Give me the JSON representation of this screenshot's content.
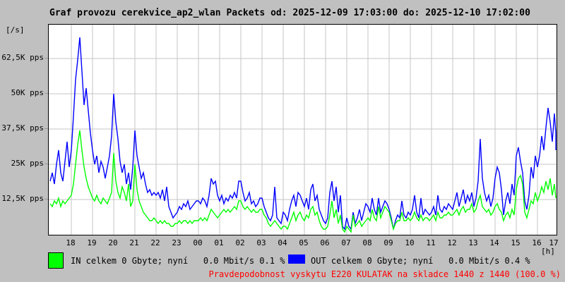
{
  "window": {
    "bg_color": "#c0c0c0"
  },
  "header": {
    "title": "Graf provozu cerekvice_ap2_wlan Packets od: 2025-12-09 17:03:00 do: 2025-12-10 17:02:00"
  },
  "axis": {
    "unit_label": "[/s]",
    "hour_unit": "[h]"
  },
  "legend": {
    "in_label": "IN celkem 0 Gbyte; nyní   0.0 Mbit/s 0.1 %",
    "out_label": "OUT celkem 0 Gbyte; nyní   0.0 Mbit/s 0.4 %",
    "in_color": "#00ff00",
    "out_color": "#0000ff"
  },
  "status": {
    "text": "Pravdepodobnost vyskytu E220 KULATAK na skladce 1440 z 1440 (100.0 %)",
    "color": "#ff0000"
  },
  "chart_data": {
    "type": "line",
    "title": "Graf provozu cerekvice_ap2_wlan Packets od: 2025-12-09 17:03:00 do: 2025-12-10 17:02:00",
    "xlabel": "[h]",
    "ylabel": "[/s]",
    "x_start": "2025-12-09 17:03:00",
    "x_end": "2025-12-10 17:02:00",
    "sample_interval_hours": 0.1,
    "values_unit": "Kpps",
    "ylim_kpps": [
      0,
      74.5
    ],
    "grid": true,
    "grid_color": "#c6c6c6",
    "y_ticks": [
      {
        "label": "12,5K pps",
        "kpps": 12.5
      },
      {
        "label": "25K pps",
        "kpps": 25
      },
      {
        "label": "37,5K pps",
        "kpps": 37.5
      },
      {
        "label": "50K pps",
        "kpps": 50
      },
      {
        "label": "62,5K pps",
        "kpps": 62.5
      }
    ],
    "x_ticks": [
      {
        "label": "18",
        "t": 1
      },
      {
        "label": "19",
        "t": 2
      },
      {
        "label": "20",
        "t": 3
      },
      {
        "label": "21",
        "t": 4
      },
      {
        "label": "22",
        "t": 5
      },
      {
        "label": "23",
        "t": 6
      },
      {
        "label": "00",
        "t": 7
      },
      {
        "label": "01",
        "t": 8
      },
      {
        "label": "02",
        "t": 9
      },
      {
        "label": "03",
        "t": 10
      },
      {
        "label": "04",
        "t": 11
      },
      {
        "label": "05",
        "t": 12
      },
      {
        "label": "06",
        "t": 13
      },
      {
        "label": "07",
        "t": 14
      },
      {
        "label": "08",
        "t": 15
      },
      {
        "label": "09",
        "t": 16
      },
      {
        "label": "10",
        "t": 17
      },
      {
        "label": "11",
        "t": 18
      },
      {
        "label": "12",
        "t": 19
      },
      {
        "label": "13",
        "t": 20
      },
      {
        "label": "14",
        "t": 21
      },
      {
        "label": "15",
        "t": 22
      },
      {
        "label": "16",
        "t": 23
      },
      {
        "label": "17",
        "t": 24
      }
    ],
    "legend_position": "bottom",
    "series": [
      {
        "name": "IN",
        "color": "#00ff00",
        "values": [
          11,
          10,
          12,
          11,
          13,
          10,
          12,
          11,
          12,
          13,
          14,
          18,
          25,
          32,
          37,
          30,
          24,
          20,
          17,
          15,
          13,
          12,
          14,
          12,
          11,
          13,
          12,
          11,
          13,
          15,
          29,
          19,
          15,
          13,
          17,
          15,
          12,
          18,
          10,
          12,
          25,
          16,
          12,
          10,
          8,
          7,
          6,
          5,
          5,
          6,
          5,
          4,
          5,
          4,
          5,
          4,
          4,
          3,
          3,
          4,
          4,
          5,
          4,
          5,
          5,
          4,
          5,
          4,
          5,
          5,
          5,
          6,
          5,
          6,
          5,
          7,
          9,
          8,
          7,
          6,
          7,
          8,
          9,
          8,
          9,
          8,
          9,
          10,
          9,
          12,
          12,
          10,
          9,
          10,
          9,
          8,
          9,
          8,
          8,
          9,
          9,
          7,
          6,
          4,
          3,
          4,
          5,
          4,
          3,
          2,
          3,
          3,
          2,
          4,
          6,
          8,
          5,
          7,
          8,
          6,
          5,
          7,
          6,
          9,
          10,
          7,
          8,
          5,
          3,
          2,
          2,
          3,
          7,
          12,
          6,
          9,
          4,
          7,
          2,
          1,
          3,
          2,
          1,
          7,
          3,
          4,
          5,
          3,
          4,
          5,
          6,
          5,
          9,
          6,
          5,
          10,
          6,
          8,
          10,
          9,
          8,
          5,
          2,
          4,
          5,
          5,
          8,
          5,
          5,
          6,
          5,
          6,
          8,
          6,
          5,
          7,
          5,
          6,
          6,
          5,
          6,
          7,
          5,
          8,
          6,
          6,
          7,
          7,
          8,
          7,
          7,
          8,
          9,
          7,
          9,
          10,
          8,
          9,
          9,
          11,
          8,
          9,
          12,
          14,
          10,
          9,
          8,
          9,
          7,
          8,
          10,
          11,
          9,
          8,
          5,
          7,
          8,
          6,
          9,
          7,
          16,
          20,
          21,
          18,
          8,
          6,
          9,
          12,
          11,
          15,
          12,
          14,
          17,
          15,
          19,
          16,
          20,
          14,
          18,
          13,
          13
        ]
      },
      {
        "name": "OUT",
        "color": "#0000ff",
        "values": [
          19,
          22,
          18,
          25,
          30,
          22,
          19,
          26,
          33,
          24,
          30,
          42,
          55,
          62,
          70,
          58,
          46,
          52,
          44,
          36,
          30,
          25,
          28,
          22,
          26,
          24,
          20,
          24,
          28,
          35,
          50,
          40,
          34,
          26,
          22,
          25,
          18,
          22,
          16,
          24,
          37,
          28,
          24,
          20,
          22,
          18,
          15,
          16,
          14,
          15,
          14,
          15,
          13,
          16,
          12,
          17,
          10,
          8,
          6,
          7,
          8,
          10,
          9,
          11,
          10,
          12,
          9,
          10,
          11,
          12,
          12,
          11,
          13,
          12,
          10,
          14,
          20,
          18,
          19,
          14,
          12,
          14,
          11,
          13,
          12,
          14,
          13,
          15,
          13,
          19,
          19,
          15,
          12,
          13,
          15,
          11,
          12,
          10,
          11,
          13,
          13,
          10,
          8,
          6,
          5,
          7,
          17,
          6,
          5,
          4,
          8,
          7,
          5,
          9,
          12,
          14,
          10,
          15,
          14,
          12,
          10,
          13,
          9,
          16,
          18,
          12,
          14,
          9,
          7,
          5,
          4,
          6,
          15,
          19,
          12,
          17,
          8,
          14,
          3,
          2,
          6,
          3,
          2,
          8,
          4,
          6,
          9,
          5,
          8,
          11,
          10,
          8,
          13,
          9,
          7,
          13,
          8,
          10,
          12,
          11,
          9,
          6,
          2,
          5,
          7,
          6,
          12,
          7,
          6,
          8,
          7,
          9,
          14,
          8,
          6,
          13,
          7,
          9,
          8,
          7,
          8,
          10,
          7,
          14,
          9,
          8,
          10,
          9,
          11,
          10,
          9,
          12,
          15,
          10,
          13,
          16,
          11,
          14,
          12,
          15,
          10,
          13,
          19,
          34,
          20,
          15,
          12,
          14,
          10,
          13,
          20,
          24,
          22,
          16,
          7,
          12,
          15,
          11,
          18,
          14,
          28,
          31,
          26,
          22,
          12,
          9,
          14,
          24,
          20,
          28,
          24,
          28,
          35,
          30,
          38,
          45,
          40,
          33,
          43,
          36,
          30
        ]
      }
    ]
  }
}
